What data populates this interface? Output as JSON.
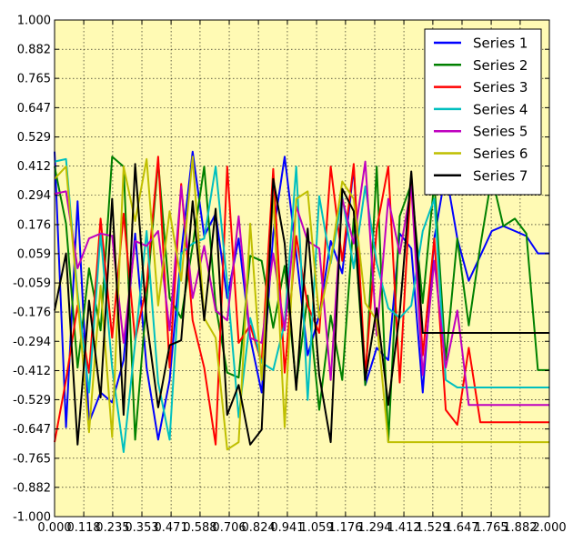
{
  "chart_data": {
    "type": "line",
    "title": "",
    "xlabel": "",
    "ylabel": "",
    "xlim": [
      0.0,
      2.0
    ],
    "ylim": [
      -1.0,
      1.0
    ],
    "grid": true,
    "background": "#fffab4",
    "legend_position": "top-right",
    "x_ticks": [
      "0.000",
      "0.118",
      "0.235",
      "0.353",
      "0.471",
      "0.588",
      "0.706",
      "0.824",
      "0.941",
      "1.059",
      "1.176",
      "1.294",
      "1.412",
      "1.529",
      "1.647",
      "1.765",
      "1.882",
      "2.000"
    ],
    "y_ticks": [
      "1.000",
      "0.882",
      "0.765",
      "0.647",
      "0.529",
      "0.412",
      "0.294",
      "0.176",
      "0.059",
      "-0.059",
      "-0.176",
      "-0.294",
      "-0.412",
      "-0.529",
      "-0.647",
      "-0.765",
      "-0.882",
      "-1.000"
    ],
    "x": [
      0.0,
      0.0465,
      0.093,
      0.1395,
      0.186,
      0.2326,
      0.2791,
      0.3256,
      0.3721,
      0.4186,
      0.4651,
      0.5116,
      0.5581,
      0.6047,
      0.6512,
      0.6977,
      0.7442,
      0.7907,
      0.8372,
      0.8837,
      0.9302,
      0.9767,
      1.0233,
      1.0698,
      1.1163,
      1.1628,
      1.2093,
      1.2558,
      1.3023,
      1.3488,
      1.3953,
      1.4419,
      1.4884,
      1.5349,
      1.5814,
      1.6279,
      1.6744,
      1.7209,
      1.7674,
      1.814,
      1.8605,
      1.907,
      1.9535,
      2.0
    ],
    "series": [
      {
        "name": "Series 1",
        "color": "#0000ff",
        "values": [
          0.47,
          -0.64,
          0.27,
          -0.62,
          -0.5,
          -0.54,
          -0.37,
          0.14,
          -0.4,
          -0.69,
          -0.45,
          0.06,
          0.47,
          0.13,
          0.22,
          -0.12,
          0.12,
          -0.28,
          -0.5,
          0.14,
          0.45,
          0.06,
          -0.35,
          -0.19,
          0.11,
          -0.02,
          0.41,
          -0.47,
          -0.32,
          -0.37,
          0.14,
          0.08,
          -0.5,
          0.12,
          0.39,
          0.12,
          -0.05,
          0.05,
          0.15,
          0.17,
          0.15,
          0.13,
          0.06,
          0.06
        ]
      },
      {
        "name": "Series 2",
        "color": "#008000",
        "values": [
          0.41,
          0.18,
          -0.4,
          0.0,
          -0.25,
          0.45,
          0.41,
          -0.69,
          -0.12,
          0.43,
          -0.12,
          -0.2,
          0.09,
          0.41,
          -0.15,
          -0.42,
          -0.44,
          0.05,
          0.03,
          -0.24,
          0.01,
          -0.47,
          -0.11,
          -0.57,
          -0.19,
          -0.45,
          0.2,
          -0.47,
          0.41,
          -0.7,
          0.21,
          0.34,
          -0.14,
          0.35,
          -0.37,
          0.12,
          -0.23,
          0.09,
          0.37,
          0.17,
          0.2,
          0.14,
          -0.41,
          -0.41
        ]
      },
      {
        "name": "Series 3",
        "color": "#ff0000",
        "values": [
          -0.7,
          -0.45,
          -0.15,
          -0.42,
          0.2,
          -0.28,
          0.22,
          -0.29,
          -0.07,
          0.45,
          -0.4,
          0.34,
          -0.21,
          -0.4,
          -0.71,
          0.41,
          -0.3,
          -0.23,
          -0.38,
          0.4,
          -0.42,
          0.13,
          -0.15,
          -0.26,
          0.41,
          0.03,
          0.42,
          -0.43,
          0.16,
          0.41,
          -0.46,
          0.38,
          -0.35,
          0.12,
          -0.57,
          -0.63,
          -0.32,
          -0.62,
          -0.62,
          -0.62,
          -0.62,
          -0.62,
          -0.62,
          -0.62
        ]
      },
      {
        "name": "Series 4",
        "color": "#00bfbf",
        "values": [
          0.43,
          0.44,
          -0.1,
          -0.5,
          0.14,
          -0.4,
          -0.74,
          -0.3,
          0.15,
          -0.46,
          -0.69,
          0.06,
          0.1,
          0.12,
          0.41,
          -0.06,
          -0.6,
          -0.2,
          -0.38,
          -0.41,
          -0.22,
          0.41,
          -0.53,
          0.29,
          0.02,
          0.29,
          0.0,
          0.33,
          0.02,
          -0.16,
          -0.2,
          -0.15,
          0.15,
          0.28,
          -0.45,
          -0.48,
          -0.48,
          -0.48,
          -0.48,
          -0.48,
          -0.48,
          -0.48,
          -0.48,
          -0.48
        ]
      },
      {
        "name": "Series 5",
        "color": "#bf00bf",
        "values": [
          0.3,
          0.31,
          0.0,
          0.12,
          0.14,
          0.13,
          -0.3,
          0.11,
          0.09,
          0.15,
          -0.25,
          0.33,
          -0.12,
          0.09,
          -0.17,
          -0.21,
          0.21,
          -0.28,
          -0.3,
          0.06,
          -0.25,
          0.25,
          0.11,
          0.08,
          -0.45,
          0.28,
          0.1,
          0.43,
          -0.27,
          0.28,
          0.06,
          0.33,
          -0.43,
          0.03,
          -0.4,
          -0.17,
          -0.55,
          -0.55,
          -0.55,
          -0.55,
          -0.55,
          -0.55,
          -0.55,
          -0.55
        ]
      },
      {
        "name": "Series 6",
        "color": "#bfbf00",
        "values": [
          0.36,
          0.41,
          -0.12,
          -0.66,
          -0.07,
          -0.68,
          0.41,
          0.19,
          0.44,
          -0.15,
          0.23,
          -0.05,
          0.45,
          -0.2,
          -0.28,
          -0.73,
          -0.7,
          0.18,
          -0.45,
          0.29,
          -0.64,
          0.28,
          0.31,
          -0.2,
          0.03,
          0.35,
          0.28,
          -0.14,
          -0.21,
          -0.7,
          -0.7,
          -0.7,
          -0.7,
          -0.7,
          -0.7,
          -0.7,
          -0.7,
          -0.7,
          -0.7,
          -0.7,
          -0.7,
          -0.7,
          -0.7,
          -0.7
        ]
      },
      {
        "name": "Series 7",
        "color": "#000000",
        "values": [
          -0.17,
          0.06,
          -0.71,
          -0.13,
          -0.52,
          0.28,
          -0.59,
          0.42,
          -0.21,
          -0.56,
          -0.31,
          -0.29,
          0.27,
          -0.21,
          0.24,
          -0.59,
          -0.47,
          -0.71,
          -0.65,
          0.36,
          0.1,
          -0.49,
          0.16,
          -0.43,
          -0.7,
          0.32,
          0.23,
          -0.45,
          -0.16,
          -0.55,
          -0.18,
          0.39,
          -0.26,
          -0.26,
          -0.26,
          -0.26,
          -0.26,
          -0.26,
          -0.26,
          -0.26,
          -0.26,
          -0.26,
          -0.26,
          -0.26
        ]
      }
    ]
  }
}
